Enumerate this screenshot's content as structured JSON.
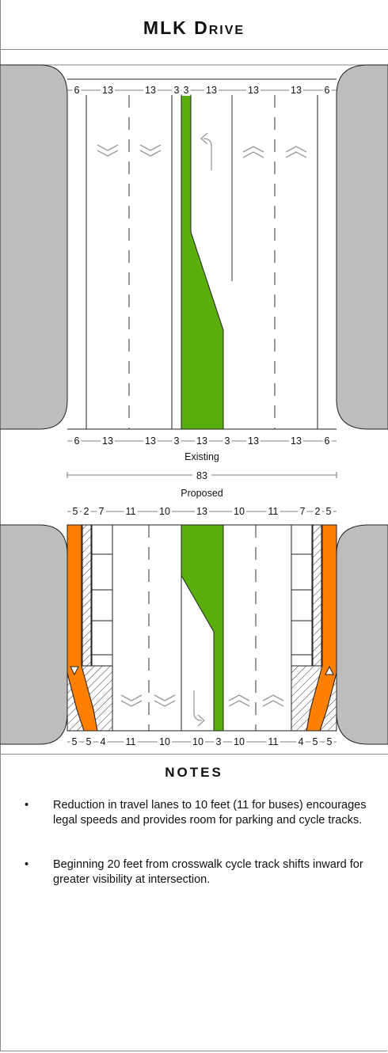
{
  "title": "MLK Drive",
  "colors": {
    "median": "#5aae0c",
    "cycle_track": "#ff7f00",
    "curb": "#bdbdbd"
  },
  "existing": {
    "top_dims": [
      "6",
      "13",
      "13",
      "3",
      "3",
      "13",
      "13",
      "13",
      "6"
    ],
    "bottom_dims": [
      "6",
      "13",
      "13",
      "3",
      "13",
      "3",
      "13",
      "13",
      "6"
    ],
    "label": "Existing",
    "total": "83"
  },
  "proposed": {
    "label": "Proposed",
    "top_dims": [
      "5",
      "2",
      "7",
      "11",
      "10",
      "13",
      "10",
      "11",
      "7",
      "2",
      "5"
    ],
    "bottom_dims": [
      "5",
      "5",
      "4",
      "11",
      "10",
      "10",
      "3",
      "10",
      "11",
      "4",
      "5",
      "5"
    ]
  },
  "notes": {
    "heading": "Notes",
    "items": [
      "Reduction in travel lanes to 10 feet (11 for buses) encourages legal speeds and provides room for parking and cycle tracks.",
      "Beginning 20 feet from crosswalk cycle track shifts inward for greater visibility at intersection."
    ]
  }
}
